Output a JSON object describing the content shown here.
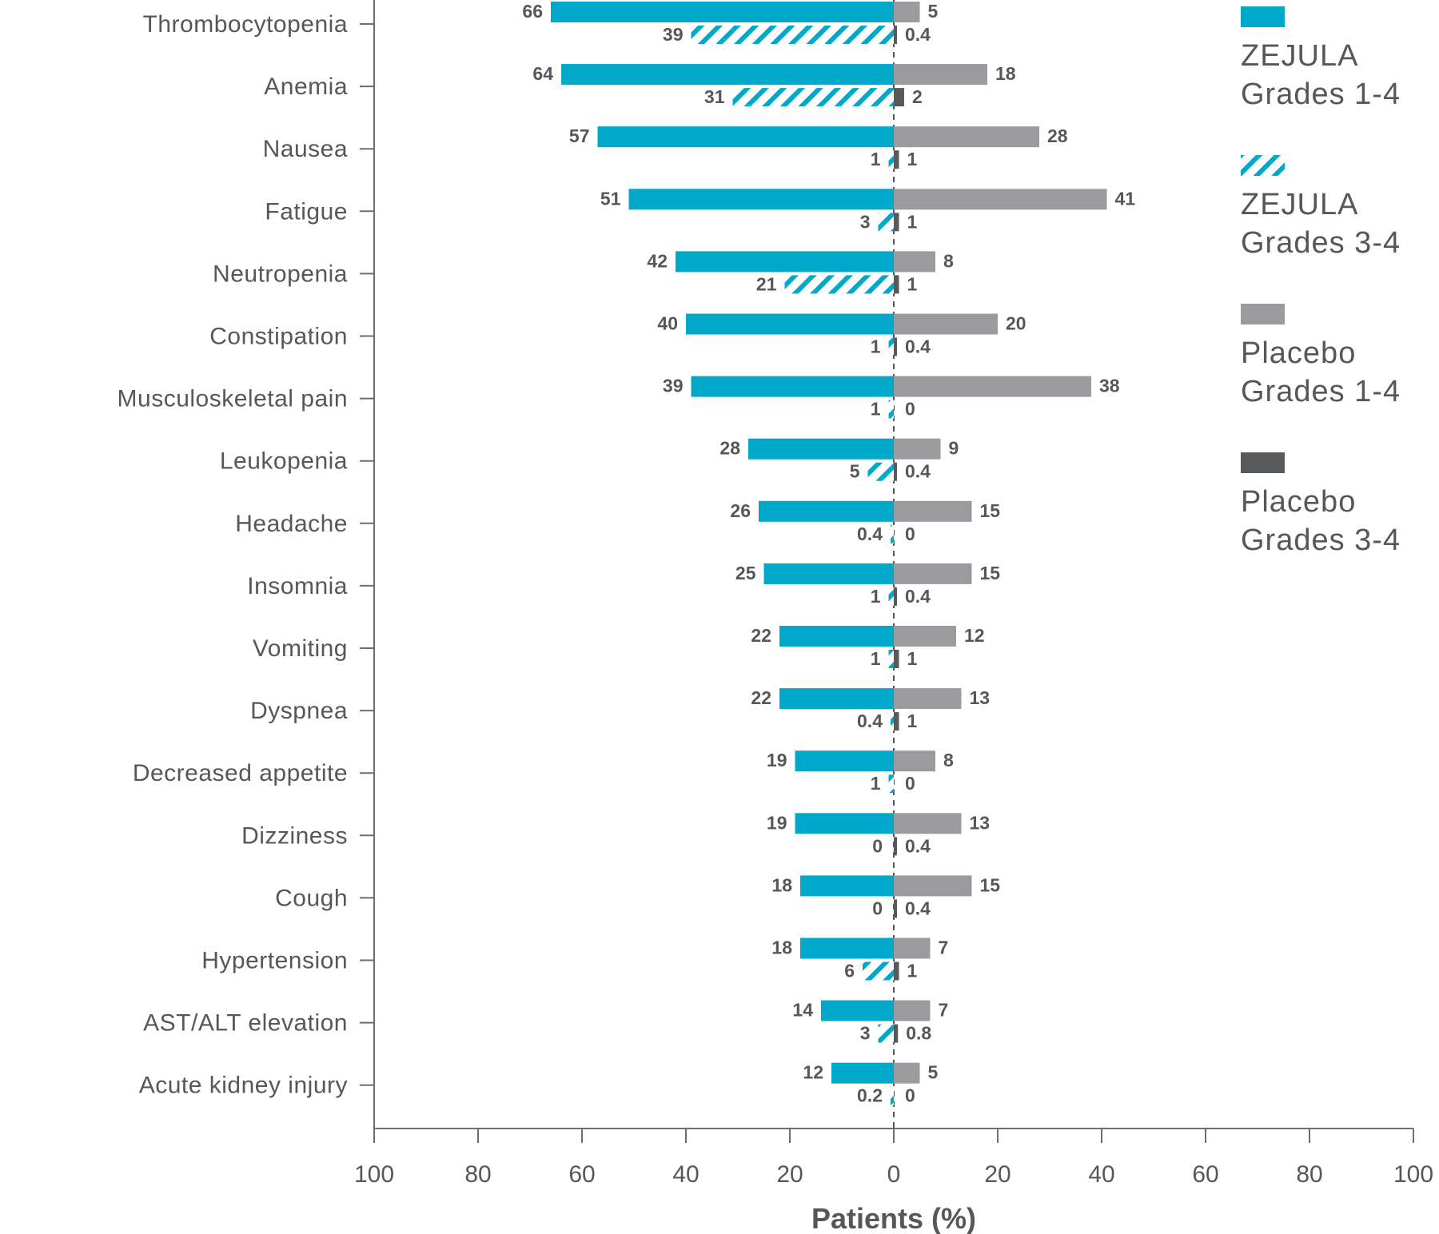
{
  "chart_data": {
    "type": "bar",
    "orientation": "horizontal-diverging",
    "xlabel": "Patients (%)",
    "xlim": [
      -100,
      100
    ],
    "x_ticks": [
      "100",
      "80",
      "60",
      "40",
      "20",
      "0",
      "20",
      "40",
      "60",
      "80",
      "100"
    ],
    "categories": [
      "Thrombocytopenia",
      "Anemia",
      "Nausea",
      "Fatigue",
      "Neutropenia",
      "Constipation",
      "Musculoskeletal pain",
      "Leukopenia",
      "Headache",
      "Insomnia",
      "Vomiting",
      "Dyspnea",
      "Decreased appetite",
      "Dizziness",
      "Cough",
      "Hypertension",
      "AST/ALT elevation",
      "Acute kidney injury"
    ],
    "series": [
      {
        "name": "ZEJULA Grades 1-4",
        "color": "#00a8c9",
        "side": "left",
        "pattern": "solid",
        "values": [
          66,
          64,
          57,
          51,
          42,
          40,
          39,
          28,
          26,
          25,
          22,
          22,
          19,
          19,
          18,
          18,
          14,
          12
        ],
        "labels": [
          "66",
          "64",
          "57",
          "51",
          "42",
          "40",
          "39",
          "28",
          "26",
          "25",
          "22",
          "22",
          "19",
          "19",
          "18",
          "18",
          "14",
          "12"
        ]
      },
      {
        "name": "ZEJULA Grades 3-4",
        "color": "#00a8c9",
        "side": "left",
        "pattern": "hatch",
        "values": [
          39,
          31,
          1,
          3,
          21,
          1,
          1,
          5,
          0.4,
          1,
          1,
          0.4,
          1,
          0,
          0,
          6,
          3,
          0.2
        ],
        "labels": [
          "39",
          "31",
          "1",
          "3",
          "21",
          "1",
          "1",
          "5",
          "0.4",
          "1",
          "1",
          "0.4",
          "1",
          "0",
          "0",
          "6",
          "3",
          "0.2"
        ]
      },
      {
        "name": "Placebo Grades 1-4",
        "color": "#9b9b9e",
        "side": "right",
        "pattern": "solid",
        "values": [
          5,
          18,
          28,
          41,
          8,
          20,
          38,
          9,
          15,
          15,
          12,
          13,
          8,
          13,
          15,
          7,
          7,
          5
        ],
        "labels": [
          "5",
          "18",
          "28",
          "41",
          "8",
          "20",
          "38",
          "9",
          "15",
          "15",
          "12",
          "13",
          "8",
          "13",
          "15",
          "7",
          "7",
          "5"
        ]
      },
      {
        "name": "Placebo Grades 3-4",
        "color": "#58595b",
        "side": "right",
        "pattern": "solid",
        "values": [
          0.4,
          2,
          1,
          1,
          1,
          0.4,
          0,
          0.4,
          0,
          0.4,
          1,
          1,
          0,
          0.4,
          0.4,
          1,
          0.8,
          0
        ],
        "labels": [
          "0.4",
          "2",
          "1",
          "1",
          "1",
          "0.4",
          "0",
          "0.4",
          "0",
          "0.4",
          "1",
          "1",
          "0",
          "0.4",
          "0.4",
          "1",
          "0.8",
          "0"
        ]
      }
    ],
    "legend": {
      "position": "right",
      "entries": [
        {
          "line1": "ZEJULA",
          "line2": "Grades 1-4",
          "color": "#00a8c9",
          "pattern": "solid"
        },
        {
          "line1": "ZEJULA",
          "line2": "Grades 3-4",
          "color": "#00a8c9",
          "pattern": "hatch"
        },
        {
          "line1": "Placebo",
          "line2": "Grades 1-4",
          "color": "#9b9b9e",
          "pattern": "solid"
        },
        {
          "line1": "Placebo",
          "line2": "Grades 3-4",
          "color": "#58595b",
          "pattern": "solid"
        }
      ]
    },
    "axis_color": "#6d6e70",
    "center_line": "dashed"
  }
}
